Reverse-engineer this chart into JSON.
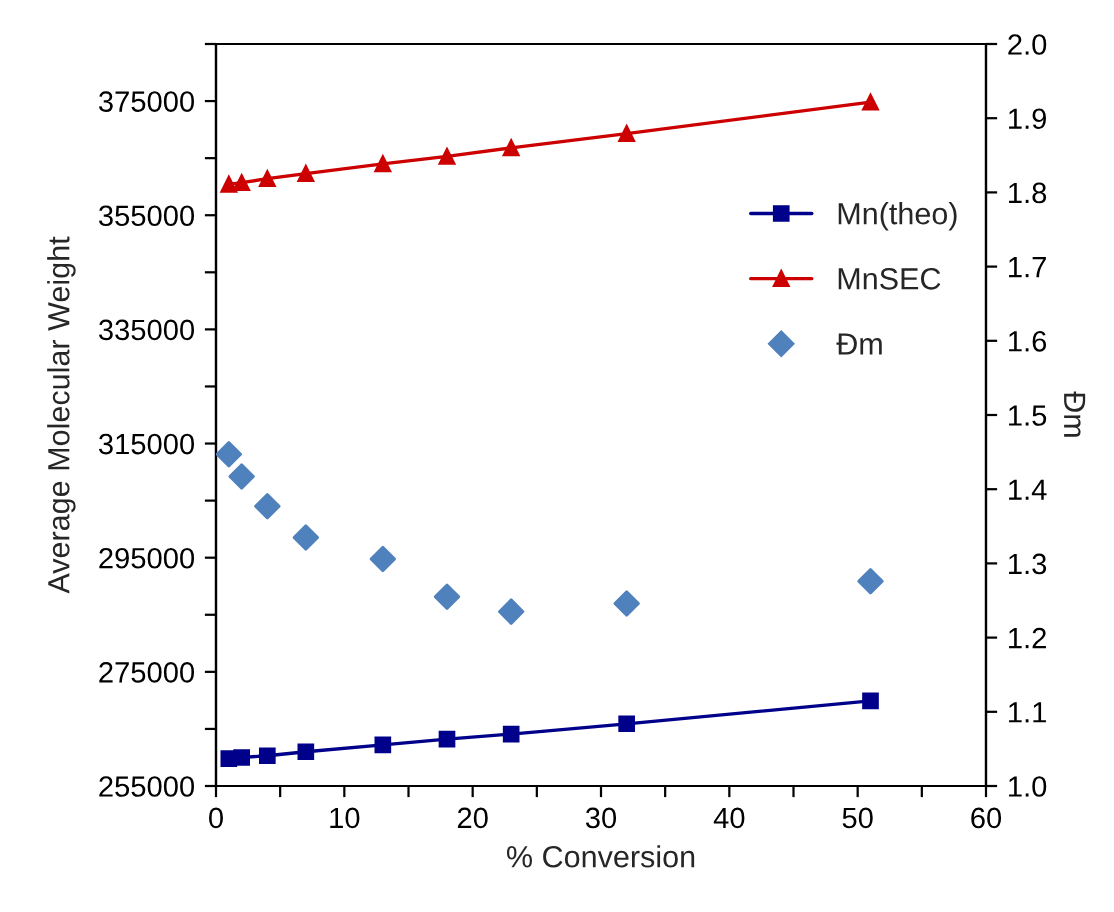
{
  "chart_data": {
    "type": "line",
    "xlabel": "% Conversion",
    "ylabel": "Average Molecular Weight",
    "y2label": "Đm",
    "x": [
      1,
      2,
      4,
      7,
      13,
      18,
      23,
      32,
      51
    ],
    "series": [
      {
        "name": "Mn(theo)",
        "marker": "square",
        "color": "#00008b",
        "values": [
          259800,
          260000,
          260300,
          261000,
          262200,
          263200,
          264100,
          265900,
          269900
        ]
      },
      {
        "name": "MnSEC",
        "marker": "triangle",
        "color": "#cc0000",
        "values": [
          360400,
          360700,
          361400,
          362300,
          364000,
          365300,
          366800,
          369300,
          374800
        ]
      },
      {
        "name": "Đm",
        "type": "scatter",
        "marker": "diamond",
        "axis": "y2",
        "color": "#4f81bd",
        "values": [
          1.447,
          1.417,
          1.377,
          1.335,
          1.306,
          1.255,
          1.235,
          1.246,
          1.276
        ]
      }
    ],
    "xlim": [
      0,
      60
    ],
    "xticks": [
      0,
      {
        "value": 5,
        "label": null
      },
      10,
      {
        "value": 15,
        "label": null
      },
      20,
      {
        "value": 25,
        "label": null
      },
      30,
      {
        "value": 35,
        "label": null
      },
      40,
      {
        "value": 45,
        "label": null
      },
      50,
      {
        "value": 55,
        "label": null
      },
      60
    ],
    "ylim": [
      255000,
      385000
    ],
    "yticks": [
      255000,
      {
        "value": 265000,
        "label": null
      },
      275000,
      {
        "value": 285000,
        "label": null
      },
      295000,
      {
        "value": 305000,
        "label": null
      },
      315000,
      {
        "value": 325000,
        "label": null
      },
      335000,
      {
        "value": 345000,
        "label": null
      },
      355000,
      {
        "value": 365000,
        "label": null
      },
      375000,
      {
        "value": 385000,
        "label": null
      }
    ],
    "y2lim": [
      1.0,
      2.0
    ],
    "y2ticks": [
      {
        "value": 1.0,
        "label": "1.0"
      },
      1.1,
      1.2,
      1.3,
      1.4,
      1.5,
      1.6,
      1.7,
      1.8,
      1.9,
      {
        "value": 2.0,
        "label": "2.0"
      }
    ],
    "grid": false,
    "legend": "right"
  }
}
